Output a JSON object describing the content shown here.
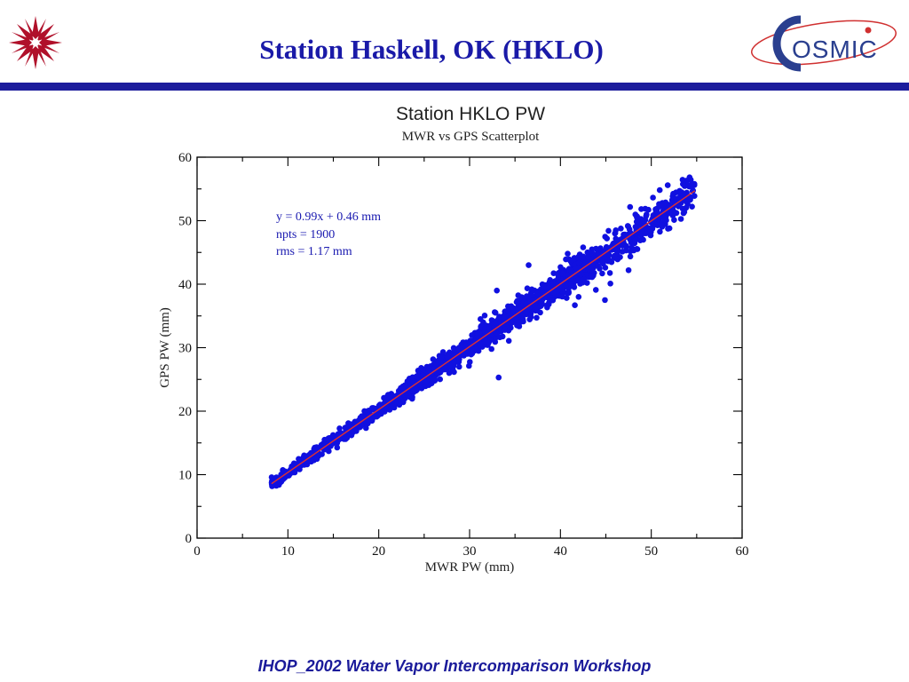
{
  "slide": {
    "title": "Station Haskell, OK (HKLO)",
    "footer": "IHOP_2002 Water Vapor Intercomparison Workshop",
    "logo_right_text": "OSMIC",
    "title_color": "#1a1aa8",
    "rule_color": "#1c1c9c"
  },
  "chart_data": {
    "type": "scatter",
    "title": "Station HKLO PW",
    "subtitle": "MWR vs GPS Scatterplot",
    "xlabel": "MWR PW (mm)",
    "ylabel": "GPS PW (mm)",
    "xlim": [
      0,
      60
    ],
    "ylim": [
      0,
      60
    ],
    "xticks": [
      0,
      10,
      20,
      30,
      40,
      50,
      60
    ],
    "yticks": [
      0,
      10,
      20,
      30,
      40,
      50,
      60
    ],
    "grid": false,
    "point_color": "#1010e0",
    "fit_line_color": "#e03030",
    "fit": {
      "slope": 0.99,
      "intercept": 0.46,
      "x_range": [
        8.2,
        54.8
      ]
    },
    "annotation": [
      "y = 0.99x + 0.46 mm",
      "npts = 1900",
      "rms = 1.17 mm"
    ],
    "npts": 1900,
    "rms": 1.17,
    "outliers": [
      [
        33,
        39
      ],
      [
        33.2,
        25.3
      ],
      [
        40.8,
        44.8
      ],
      [
        42.5,
        45.8
      ],
      [
        44.9,
        37.5
      ],
      [
        47.5,
        42.2
      ],
      [
        43.9,
        39.1
      ],
      [
        45.5,
        40.1
      ],
      [
        31.2,
        34.5
      ],
      [
        36.5,
        43.0
      ],
      [
        16.5,
        15.8
      ],
      [
        42,
        38.0
      ],
      [
        49.0,
        48.0
      ],
      [
        52.0,
        48.8
      ],
      [
        46.0,
        45.5
      ]
    ]
  }
}
